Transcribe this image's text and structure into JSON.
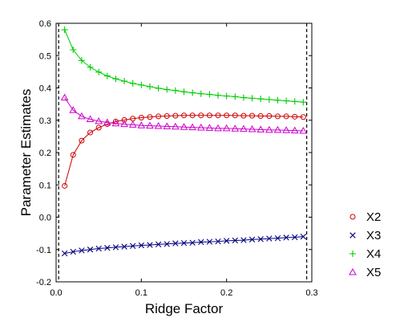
{
  "chart_data": {
    "type": "line",
    "xlabel": "Ridge Factor",
    "ylabel": "Parameter Estimates",
    "xlim": [
      0,
      0.3
    ],
    "ylim": [
      -0.2,
      0.6
    ],
    "x_ticks": [
      "0.0",
      "0.1",
      "0.2",
      "0.3"
    ],
    "y_ticks": [
      "-0.2",
      "-0.1",
      "0.0",
      "0.1",
      "0.2",
      "0.3",
      "0.4",
      "0.5",
      "0.6"
    ],
    "reference_lines_x": [
      0.003,
      0.294
    ],
    "legend_position": "right",
    "x": [
      0.01,
      0.02,
      0.03,
      0.04,
      0.05,
      0.06,
      0.07,
      0.08,
      0.09,
      0.1,
      0.11,
      0.12,
      0.13,
      0.14,
      0.15,
      0.16,
      0.17,
      0.18,
      0.19,
      0.2,
      0.21,
      0.22,
      0.23,
      0.24,
      0.25,
      0.26,
      0.27,
      0.28,
      0.29
    ],
    "series": [
      {
        "name": "X2",
        "marker": "circle",
        "color": "#cc0000",
        "values": [
          0.097,
          0.193,
          0.237,
          0.262,
          0.277,
          0.288,
          0.296,
          0.301,
          0.305,
          0.308,
          0.31,
          0.312,
          0.313,
          0.314,
          0.315,
          0.315,
          0.315,
          0.315,
          0.315,
          0.315,
          0.315,
          0.314,
          0.314,
          0.313,
          0.313,
          0.312,
          0.312,
          0.311,
          0.31
        ]
      },
      {
        "name": "X3",
        "marker": "x",
        "color": "#000080",
        "values": [
          -0.112,
          -0.107,
          -0.103,
          -0.1,
          -0.097,
          -0.095,
          -0.093,
          -0.091,
          -0.089,
          -0.087,
          -0.086,
          -0.084,
          -0.083,
          -0.081,
          -0.08,
          -0.079,
          -0.077,
          -0.076,
          -0.075,
          -0.073,
          -0.072,
          -0.071,
          -0.069,
          -0.068,
          -0.066,
          -0.065,
          -0.063,
          -0.062,
          -0.06
        ]
      },
      {
        "name": "X4",
        "marker": "plus",
        "color": "#00cc00",
        "values": [
          0.58,
          0.518,
          0.485,
          0.464,
          0.449,
          0.437,
          0.428,
          0.421,
          0.414,
          0.409,
          0.404,
          0.399,
          0.395,
          0.392,
          0.388,
          0.385,
          0.382,
          0.38,
          0.377,
          0.375,
          0.373,
          0.37,
          0.368,
          0.366,
          0.364,
          0.362,
          0.36,
          0.358,
          0.356
        ]
      },
      {
        "name": "X5",
        "marker": "triangle",
        "color": "#cc00cc",
        "values": [
          0.37,
          0.331,
          0.312,
          0.303,
          0.297,
          0.293,
          0.29,
          0.288,
          0.286,
          0.284,
          0.283,
          0.282,
          0.281,
          0.28,
          0.279,
          0.278,
          0.277,
          0.276,
          0.275,
          0.275,
          0.274,
          0.273,
          0.272,
          0.271,
          0.27,
          0.27,
          0.269,
          0.268,
          0.267
        ]
      }
    ]
  }
}
